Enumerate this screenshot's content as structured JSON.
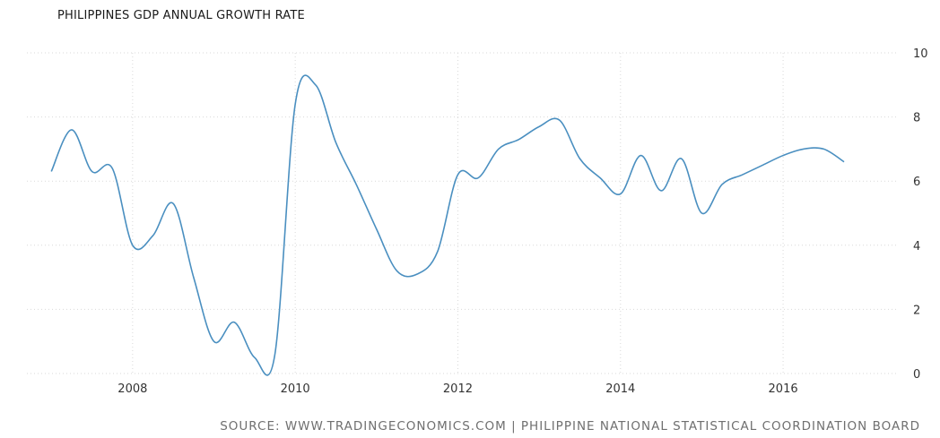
{
  "chart_data": {
    "type": "line",
    "title": "PHILIPPINES GDP ANNUAL GROWTH RATE",
    "source": "SOURCE: WWW.TRADINGECONOMICS.COM | PHILIPPINE NATIONAL STATISTICAL COORDINATION BOARD",
    "xlabel": "",
    "ylabel": "",
    "xlim": [
      2006.7,
      2017.4
    ],
    "ylim": [
      0,
      10
    ],
    "x_ticks": [
      2008,
      2010,
      2012,
      2014,
      2016
    ],
    "y_ticks": [
      0,
      2,
      4,
      6,
      8,
      10
    ],
    "grid": true,
    "color": "#4a8fc0",
    "series": [
      {
        "x": [
          2007.0,
          2007.25,
          2007.5,
          2007.75,
          2008.0,
          2008.25,
          2008.5,
          2008.75,
          2009.0,
          2009.25,
          2009.5,
          2009.75,
          2010.0,
          2010.25,
          2010.5,
          2010.75,
          2011.0,
          2011.25,
          2011.5,
          2011.75,
          2012.0,
          2012.25,
          2012.5,
          2012.75,
          2013.0,
          2013.25,
          2013.5,
          2013.75,
          2014.0,
          2014.25,
          2014.5,
          2014.75,
          2015.0,
          2015.25,
          2015.5,
          2015.75,
          2016.0,
          2016.25,
          2016.5,
          2016.75
        ],
        "y": [
          6.3,
          7.6,
          6.3,
          6.4,
          4.0,
          4.3,
          5.3,
          3.0,
          1.0,
          1.6,
          0.5,
          0.6,
          8.4,
          9.0,
          7.2,
          5.9,
          4.5,
          3.2,
          3.1,
          3.8,
          6.2,
          6.1,
          7.0,
          7.3,
          7.7,
          7.9,
          6.7,
          6.1,
          5.6,
          6.8,
          5.7,
          6.7,
          5.0,
          5.9,
          6.2,
          6.5,
          6.8,
          7.0,
          7.0,
          6.6
        ]
      }
    ]
  }
}
